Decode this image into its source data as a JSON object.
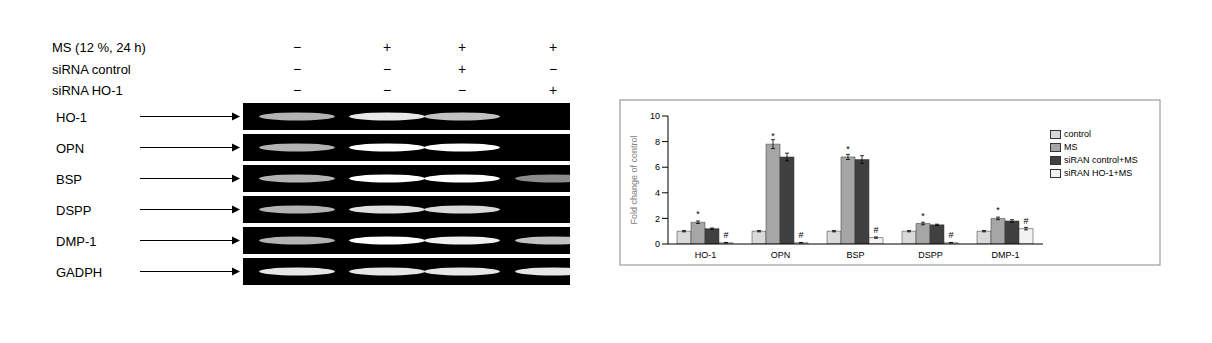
{
  "gel": {
    "conditions": [
      {
        "label": "MS (12 %, 24 h)",
        "lanes": [
          "−",
          "+",
          "+",
          "+"
        ]
      },
      {
        "label": "siRNA control",
        "lanes": [
          "−",
          "−",
          "+",
          "−"
        ]
      },
      {
        "label": "siRNA HO-1",
        "lanes": [
          "−",
          "−",
          "−",
          "+"
        ]
      }
    ],
    "bands": [
      "HO-1",
      "OPN",
      "BSP",
      "DSPP",
      "DMP-1",
      "GADPH"
    ]
  },
  "chart_data": {
    "type": "bar",
    "categories": [
      "HO-1",
      "OPN",
      "BSP",
      "DSPP",
      "DMP-1"
    ],
    "y_label": "Fold change of control",
    "ylim": [
      0,
      10
    ],
    "yticks": [
      0,
      2,
      4,
      6,
      8,
      10
    ],
    "grid": false,
    "legend": "right",
    "series": [
      {
        "name": "control",
        "color": "#d9d9d9",
        "values": [
          1,
          1,
          1,
          1,
          1
        ],
        "errors": [
          0.05,
          0.05,
          0.05,
          0.05,
          0.05
        ]
      },
      {
        "name": "MS",
        "color": "#a6a6a6",
        "values": [
          1.7,
          7.8,
          6.8,
          1.6,
          2.0
        ],
        "errors": [
          0.1,
          0.35,
          0.2,
          0.1,
          0.1
        ],
        "annotation": "*"
      },
      {
        "name": "siRAN control+MS",
        "color": "#404040",
        "values": [
          1.2,
          6.8,
          6.6,
          1.5,
          1.8
        ],
        "errors": [
          0.05,
          0.3,
          0.3,
          0.05,
          0.1
        ]
      },
      {
        "name": "siRAN HO-1+MS",
        "color": "#f2f2f2",
        "values": [
          0.1,
          0.1,
          0.5,
          0.1,
          1.2
        ],
        "errors": [
          0.02,
          0.02,
          0.05,
          0.02,
          0.1
        ],
        "annotation": "#"
      }
    ]
  }
}
